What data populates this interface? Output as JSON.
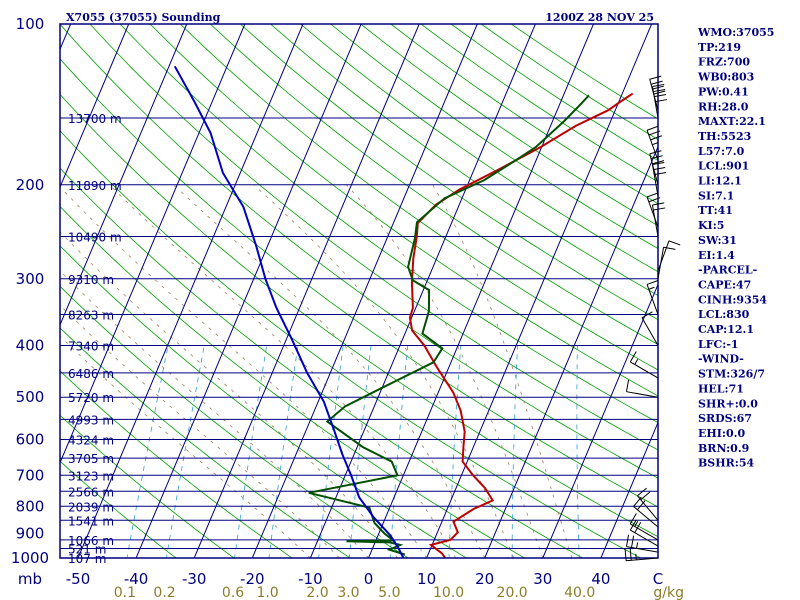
{
  "header": {
    "station": "X7055 (37055) Sounding",
    "time": "1200Z 28 NOV 25"
  },
  "indices": [
    "WMO:37055",
    "TP:219",
    "FRZ:700",
    "WB0:803",
    "PW:0.41",
    "RH:28.0",
    "MAXT:22.1",
    "TH:5523",
    "L57:7.0",
    "LCL:901",
    "LI:12.1",
    "SI:7.1",
    "TT:41",
    "KI:5",
    "SW:31",
    "EI:1.4",
    "-PARCEL-",
    "CAPE:47",
    "CINH:9354",
    "LCL:830",
    "CAP:12.1",
    "LFC:-1",
    "-WIND-",
    "STM:326/7",
    "HEL:71",
    "SHR+:0.0",
    "SRDS:67",
    "EHI:0.0",
    "BRN:0.9",
    "BSHR:54"
  ],
  "colors": {
    "frame": "#000080",
    "isobar": "#000080",
    "isotherm": "#000080",
    "dry_adiabat": "#00a000",
    "moist_adiabat": "#a08060",
    "mixing_ratio": "#2fa0d0",
    "temperature": "#c00000",
    "dewpoint": "#005000",
    "parcel": "#0000c0",
    "wind_label": "#8b7d2a",
    "barb": "#000000"
  },
  "chart_data": {
    "type": "line",
    "title": "",
    "xlabel": "",
    "ylabel": "",
    "x_unit_label": "C",
    "y_unit_label": "mb",
    "xlim": [
      -50,
      50
    ],
    "ylim": [
      1000,
      100
    ],
    "y_scale": "log",
    "x_ticks": [
      -50,
      -40,
      -30,
      -20,
      -10,
      0,
      10,
      20,
      30,
      40
    ],
    "x_tick_labels": [
      "-50",
      "-40",
      "-30",
      "-20",
      "-10",
      "0",
      "10",
      "20",
      "30",
      "40"
    ],
    "y_ticks": [
      1000,
      900,
      800,
      700,
      600,
      500,
      400,
      300,
      200,
      100
    ],
    "y_tick_labels": [
      "1000",
      "900",
      "800",
      "700",
      "600",
      "500",
      "400",
      "300",
      "200",
      "100"
    ],
    "mixing_ratio_unit": "g/kg",
    "mixing_ratio_labels": [
      "0.1",
      "0.2",
      "0.6",
      "1.0",
      "2.0",
      "3.0",
      "5.0",
      "10.0",
      "20.0",
      "40.0"
    ],
    "mixing_ratio_values": [
      0.1,
      0.2,
      0.6,
      1.0,
      2.0,
      3.0,
      5.0,
      10.0,
      20.0,
      40.0
    ],
    "heights": [
      {
        "p": 1000,
        "label": "107 m"
      },
      {
        "p": 960,
        "label": "521 m"
      },
      {
        "p": 925,
        "label": "1066 m"
      },
      {
        "p": 850,
        "label": "1541 m"
      },
      {
        "p": 800,
        "label": "2039 m"
      },
      {
        "p": 750,
        "label": "2566 m"
      },
      {
        "p": 700,
        "label": "3123 m"
      },
      {
        "p": 650,
        "label": "3705 m"
      },
      {
        "p": 600,
        "label": "4324 m"
      },
      {
        "p": 550,
        "label": "4993 m"
      },
      {
        "p": 500,
        "label": "5720 m"
      },
      {
        "p": 450,
        "label": "6486 m"
      },
      {
        "p": 400,
        "label": "7340 m"
      },
      {
        "p": 350,
        "label": "8263 m"
      },
      {
        "p": 300,
        "label": "9310 m"
      },
      {
        "p": 250,
        "label": "10490 m"
      },
      {
        "p": 200,
        "label": "11890 m"
      },
      {
        "p": 150,
        "label": "13700 m"
      }
    ],
    "isotherms_c": [
      -140,
      -130,
      -120,
      -110,
      -100,
      -90,
      -80,
      -70,
      -60,
      -50,
      -40,
      -30,
      -20,
      -10,
      0,
      10,
      20,
      30,
      40,
      50
    ],
    "dry_adiabats_k": [
      240,
      250,
      260,
      270,
      280,
      290,
      300,
      310,
      320,
      330,
      340,
      350,
      360,
      370,
      380,
      390,
      400,
      410,
      420,
      430,
      440,
      450,
      460,
      470,
      480,
      490,
      500
    ],
    "moist_adiabats_c": [
      -10,
      -5,
      0,
      5,
      10,
      15,
      20,
      25,
      30,
      35
    ],
    "series": [
      {
        "id": "temperature",
        "points": [
          [
            13.2,
            1000
          ],
          [
            12.3,
            980
          ],
          [
            9.8,
            945
          ],
          [
            12.8,
            925
          ],
          [
            13.5,
            895
          ],
          [
            12.0,
            855
          ],
          [
            14.5,
            810
          ],
          [
            17.2,
            780
          ],
          [
            15.0,
            740
          ],
          [
            12.0,
            700
          ],
          [
            9.2,
            660
          ],
          [
            8.3,
            620
          ],
          [
            7.4,
            580
          ],
          [
            5.2,
            530
          ],
          [
            2.6,
            490
          ],
          [
            -2.0,
            440
          ],
          [
            -5.8,
            400
          ],
          [
            -9.0,
            375
          ],
          [
            -10.3,
            355
          ],
          [
            -10.5,
            340
          ],
          [
            -12.5,
            305
          ],
          [
            -14.0,
            275
          ],
          [
            -15.0,
            250
          ],
          [
            -15.8,
            236
          ],
          [
            -14.0,
            218
          ],
          [
            -11.0,
            204
          ],
          [
            -6.0,
            188
          ],
          [
            -0.2,
            170
          ],
          [
            4.4,
            155
          ],
          [
            8.8,
            145
          ],
          [
            10.2,
            140
          ],
          [
            11.8,
            135
          ]
        ]
      },
      {
        "id": "dewpoint",
        "points": [
          [
            6.0,
            985
          ],
          [
            3.0,
            965
          ],
          [
            4.5,
            945
          ],
          [
            2.5,
            935
          ],
          [
            -5.0,
            930
          ],
          [
            3.0,
            927
          ],
          [
            1.0,
            900
          ],
          [
            -1.5,
            860
          ],
          [
            -3.5,
            805
          ],
          [
            -5.0,
            798
          ],
          [
            -15.0,
            755
          ],
          [
            -1.0,
            700
          ],
          [
            -3.0,
            660
          ],
          [
            -9.0,
            620
          ],
          [
            -17.0,
            555
          ],
          [
            -15.0,
            520
          ],
          [
            -10.0,
            480
          ],
          [
            -3.0,
            430
          ],
          [
            -2.5,
            405
          ],
          [
            -7.0,
            380
          ],
          [
            -7.5,
            345
          ],
          [
            -9.0,
            315
          ],
          [
            -12.5,
            302
          ],
          [
            -14.3,
            285
          ],
          [
            -15.2,
            252
          ],
          [
            -16.0,
            235
          ],
          [
            -13.0,
            212
          ],
          [
            -7.5,
            196
          ],
          [
            -3.5,
            180
          ],
          [
            -1.0,
            170
          ],
          [
            2.0,
            152
          ],
          [
            3.5,
            142
          ],
          [
            4.4,
            136
          ]
        ]
      },
      {
        "id": "parcel",
        "points": [
          [
            6.0,
            1000
          ],
          [
            4.3,
            955
          ],
          [
            2.0,
            905
          ],
          [
            -2.0,
            840
          ],
          [
            -6.0,
            770
          ],
          [
            -9.0,
            700
          ],
          [
            -12.0,
            640
          ],
          [
            -15.0,
            580
          ],
          [
            -19.0,
            510
          ],
          [
            -24.0,
            450
          ],
          [
            -29.0,
            390
          ],
          [
            -34.0,
            340
          ],
          [
            -38.0,
            300
          ],
          [
            -42.0,
            260
          ],
          [
            -47.0,
            220
          ],
          [
            -53.0,
            190
          ],
          [
            -58.0,
            160
          ],
          [
            -63.0,
            140
          ],
          [
            -69.0,
            120
          ]
        ]
      }
    ],
    "wind_barbs": [
      {
        "p": 1000,
        "dir": 265,
        "spd": 25
      },
      {
        "p": 975,
        "dir": 280,
        "spd": 25
      },
      {
        "p": 950,
        "dir": 300,
        "spd": 20
      },
      {
        "p": 925,
        "dir": 300,
        "spd": 15
      },
      {
        "p": 875,
        "dir": 310,
        "spd": 20
      },
      {
        "p": 850,
        "dir": 320,
        "spd": 20
      },
      {
        "p": 500,
        "dir": 280,
        "spd": 10
      },
      {
        "p": 460,
        "dir": 300,
        "spd": 15
      },
      {
        "p": 400,
        "dir": 330,
        "spd": 10
      },
      {
        "p": 350,
        "dir": 340,
        "spd": 15
      },
      {
        "p": 300,
        "dir": 10,
        "spd": 10
      },
      {
        "p": 290,
        "dir": 20,
        "spd": 10
      },
      {
        "p": 250,
        "dir": 350,
        "spd": 20
      },
      {
        "p": 240,
        "dir": 340,
        "spd": 20
      },
      {
        "p": 210,
        "dir": 350,
        "spd": 30
      },
      {
        "p": 200,
        "dir": 345,
        "spd": 30
      },
      {
        "p": 180,
        "dir": 340,
        "spd": 35
      },
      {
        "p": 150,
        "dir": 350,
        "spd": 40
      },
      {
        "p": 145,
        "dir": 345,
        "spd": 40
      }
    ]
  }
}
